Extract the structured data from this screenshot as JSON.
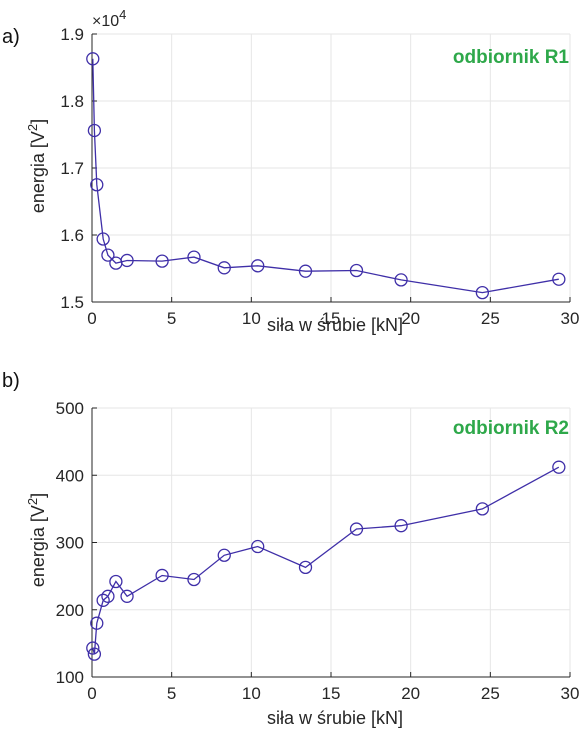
{
  "chart_data": [
    {
      "type": "line",
      "panel_label": "a)",
      "series_label": "odbiornik R1",
      "xlabel": "siła w śrubie [kN]",
      "ylabel": "energia [V",
      "ylabel_sup": "2",
      "ylabel_end": "]",
      "y_exponent_prefix": "×10",
      "y_exponent_power": "4",
      "xlim": [
        0,
        30
      ],
      "ylim": [
        1.5,
        1.9
      ],
      "x_ticks": [
        0,
        5,
        10,
        15,
        20,
        25,
        30
      ],
      "y_ticks": [
        1.5,
        1.6,
        1.7,
        1.8,
        1.9
      ],
      "x_tick_labels": [
        "0",
        "5",
        "10",
        "15",
        "20",
        "25",
        "30"
      ],
      "y_tick_labels": [
        "1.5",
        "1.6",
        "1.7",
        "1.8",
        "1.9"
      ],
      "grid": true,
      "marker": "circle",
      "x": [
        0.05,
        0.15,
        0.3,
        0.7,
        1.0,
        1.5,
        2.2,
        4.4,
        6.4,
        8.3,
        10.4,
        13.4,
        16.6,
        19.4,
        24.5,
        29.3
      ],
      "y": [
        1.863,
        1.756,
        1.675,
        1.594,
        1.57,
        1.558,
        1.562,
        1.561,
        1.567,
        1.551,
        1.554,
        1.546,
        1.547,
        1.533,
        1.514,
        1.534
      ]
    },
    {
      "type": "line",
      "panel_label": "b)",
      "series_label": "odbiornik R2",
      "xlabel": "siła w śrubie [kN]",
      "ylabel": "energia [V",
      "ylabel_sup": "2",
      "ylabel_end": "]",
      "xlim": [
        0,
        30
      ],
      "ylim": [
        100,
        500
      ],
      "x_ticks": [
        0,
        5,
        10,
        15,
        20,
        25,
        30
      ],
      "y_ticks": [
        100,
        200,
        300,
        400,
        500
      ],
      "x_tick_labels": [
        "0",
        "5",
        "10",
        "15",
        "20",
        "25",
        "30"
      ],
      "y_tick_labels": [
        "100",
        "200",
        "300",
        "400",
        "500"
      ],
      "grid": true,
      "marker": "circle",
      "x": [
        0.05,
        0.15,
        0.3,
        0.7,
        1.0,
        1.5,
        2.2,
        4.4,
        6.4,
        8.3,
        10.4,
        13.4,
        16.6,
        19.4,
        24.5,
        29.3
      ],
      "y": [
        143,
        134,
        180,
        214,
        220,
        242,
        220,
        251,
        245,
        281,
        294,
        263,
        320,
        325,
        350,
        412
      ]
    }
  ],
  "colors": {
    "series": "#3f2fa8",
    "series_label": "#2ea84a",
    "axis": "#262626",
    "grid": "#e6e6e6"
  }
}
